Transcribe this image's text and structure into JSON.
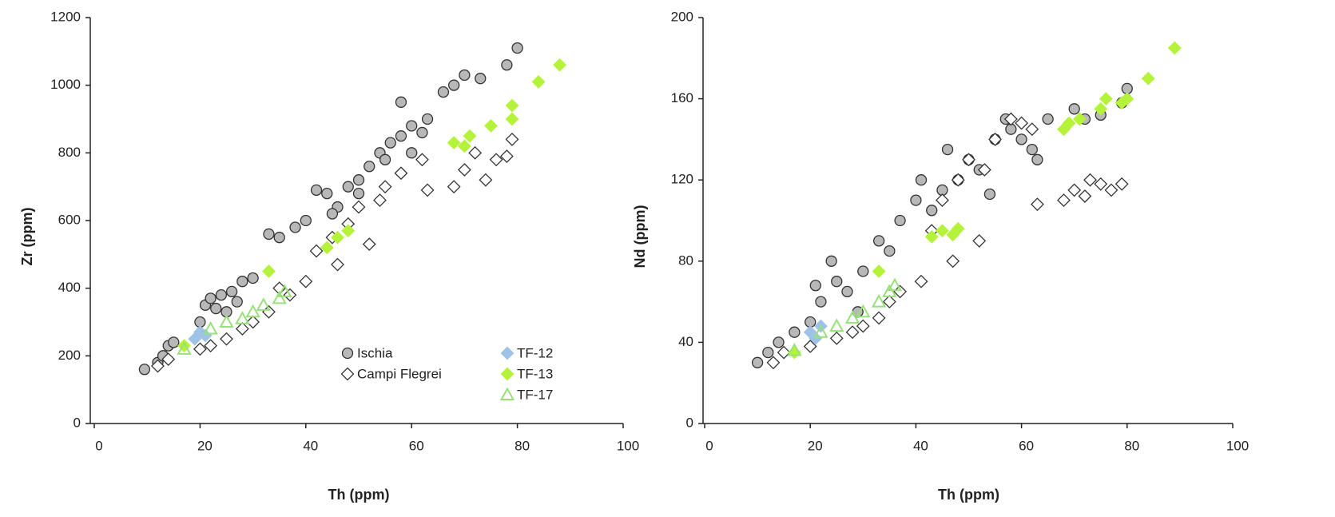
{
  "chart_data": [
    {
      "type": "scatter",
      "x_label": "Th (ppm)",
      "y_label": "Zr (ppm)",
      "xlim": [
        0,
        100
      ],
      "xticks": [
        0,
        20,
        40,
        60,
        80,
        100
      ],
      "ylim": [
        0,
        1200
      ],
      "yticks": [
        0,
        200,
        400,
        600,
        800,
        1000,
        1200
      ],
      "legend": "lower-right",
      "series": [
        {
          "name": "Ischia",
          "color": "#b8b8b8",
          "marker": "circle",
          "x": [
            9.5,
            12,
            13,
            14,
            15,
            20,
            21,
            22,
            23,
            24,
            26,
            28,
            30,
            33,
            35,
            38,
            40,
            42,
            44,
            46,
            48,
            50,
            52,
            54,
            55,
            58,
            58,
            60,
            62,
            63,
            66,
            68,
            70,
            73,
            78,
            80,
            25,
            27,
            45,
            50,
            56,
            60
          ],
          "values": [
            160,
            180,
            200,
            230,
            240,
            300,
            350,
            370,
            340,
            380,
            390,
            420,
            430,
            560,
            550,
            580,
            600,
            690,
            680,
            640,
            700,
            720,
            760,
            800,
            780,
            950,
            850,
            880,
            860,
            900,
            980,
            1000,
            1030,
            1020,
            1060,
            1110,
            330,
            360,
            620,
            680,
            830,
            800
          ]
        },
        {
          "name": "Campi Flegrei",
          "color": "#ffffff",
          "marker": "diamond",
          "x": [
            12,
            14,
            20,
            22,
            25,
            28,
            30,
            33,
            35,
            37,
            40,
            42,
            45,
            46,
            50,
            52,
            55,
            58,
            62,
            63,
            68,
            70,
            72,
            74,
            76,
            78,
            79,
            48,
            54
          ],
          "values": [
            170,
            190,
            220,
            230,
            250,
            280,
            300,
            330,
            400,
            380,
            420,
            510,
            550,
            470,
            640,
            530,
            700,
            740,
            780,
            690,
            700,
            750,
            800,
            720,
            780,
            790,
            840,
            590,
            660
          ]
        },
        {
          "name": "TF-12",
          "color": "#9ec3e6",
          "marker": "diamond",
          "x": [
            19,
            20,
            21
          ],
          "values": [
            250,
            270,
            260
          ]
        },
        {
          "name": "TF-13",
          "color": "#b5f23a",
          "marker": "diamond",
          "x": [
            17,
            33,
            44,
            46,
            48,
            68,
            70,
            71,
            75,
            79,
            79,
            84,
            88
          ],
          "values": [
            230,
            450,
            520,
            550,
            570,
            830,
            820,
            850,
            880,
            900,
            940,
            1010,
            1060
          ]
        },
        {
          "name": "TF-17",
          "color": "#99e07a",
          "marker": "triangle",
          "x": [
            17,
            22,
            25,
            28,
            30,
            32,
            35,
            36
          ],
          "values": [
            220,
            280,
            300,
            310,
            330,
            350,
            370,
            390
          ]
        }
      ]
    },
    {
      "type": "scatter",
      "x_label": "Th (ppm)",
      "y_label": "Nd (ppm)",
      "xlim": [
        0,
        100
      ],
      "xticks": [
        0,
        20,
        40,
        60,
        80,
        100
      ],
      "ylim": [
        0,
        200
      ],
      "yticks": [
        0,
        40,
        80,
        120,
        160,
        200
      ],
      "series": [
        {
          "name": "Ischia",
          "color": "#b8b8b8",
          "marker": "circle",
          "x": [
            10,
            12,
            14,
            17,
            20,
            21,
            22,
            24,
            25,
            27,
            30,
            33,
            35,
            37,
            40,
            41,
            43,
            45,
            48,
            50,
            52,
            55,
            57,
            58,
            60,
            62,
            63,
            65,
            70,
            72,
            75,
            79,
            80,
            46,
            54,
            29
          ],
          "values": [
            30,
            35,
            40,
            45,
            50,
            68,
            60,
            80,
            70,
            65,
            75,
            90,
            85,
            100,
            110,
            120,
            105,
            115,
            120,
            130,
            125,
            140,
            150,
            145,
            140,
            135,
            130,
            150,
            155,
            150,
            152,
            158,
            165,
            135,
            113,
            55
          ]
        },
        {
          "name": "Campi Flegrei",
          "color": "#ffffff",
          "marker": "diamond",
          "x": [
            13,
            15,
            20,
            25,
            28,
            30,
            33,
            35,
            37,
            41,
            43,
            45,
            47,
            48,
            50,
            52,
            55,
            58,
            60,
            62,
            63,
            68,
            70,
            72,
            73,
            75,
            77,
            79,
            53
          ],
          "values": [
            30,
            35,
            38,
            42,
            45,
            48,
            52,
            60,
            65,
            70,
            95,
            110,
            80,
            120,
            130,
            90,
            140,
            150,
            148,
            145,
            108,
            110,
            115,
            112,
            120,
            118,
            115,
            118,
            125
          ]
        },
        {
          "name": "TF-12",
          "color": "#9ec3e6",
          "marker": "diamond",
          "x": [
            20,
            21,
            22
          ],
          "values": [
            45,
            42,
            48
          ]
        },
        {
          "name": "TF-13",
          "color": "#b5f23a",
          "marker": "diamond",
          "x": [
            17,
            33,
            43,
            45,
            47,
            48,
            68,
            69,
            71,
            75,
            76,
            79,
            80,
            84,
            89
          ],
          "values": [
            35,
            75,
            92,
            95,
            93,
            96,
            145,
            148,
            150,
            155,
            160,
            158,
            160,
            170,
            185
          ]
        },
        {
          "name": "TF-17",
          "color": "#99e07a",
          "marker": "triangle",
          "x": [
            17,
            22,
            25,
            28,
            30,
            33,
            35,
            36
          ],
          "values": [
            36,
            45,
            48,
            52,
            55,
            60,
            65,
            68
          ]
        }
      ]
    }
  ]
}
